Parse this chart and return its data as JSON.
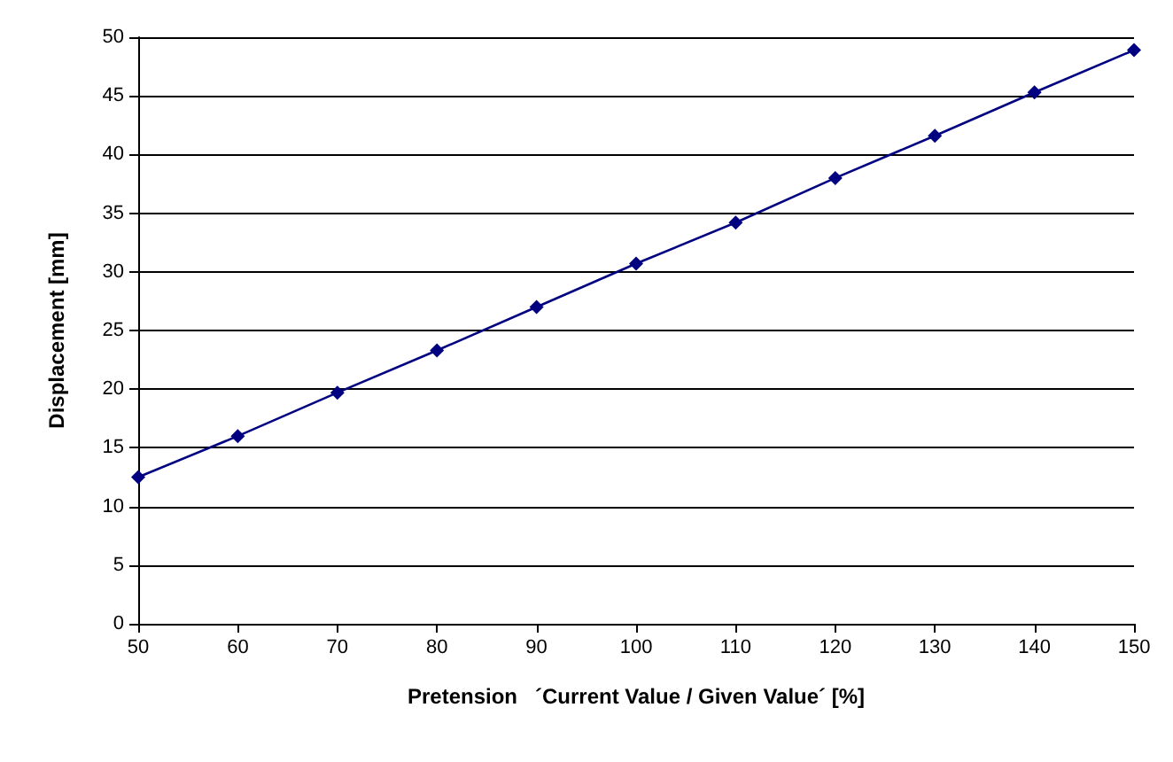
{
  "chart_data": {
    "type": "line",
    "xlabel": "Pretension   ´Current Value / Given Value´ [%]",
    "ylabel": "Displacement [mm]",
    "x": [
      50,
      60,
      70,
      80,
      90,
      100,
      110,
      120,
      130,
      140,
      150
    ],
    "series": [
      {
        "color": "#000080",
        "values": [
          12.5,
          16,
          19.7,
          23.3,
          27,
          30.7,
          34.2,
          38,
          41.6,
          45.3,
          48.9
        ]
      }
    ],
    "xlim": [
      50,
      150
    ],
    "xticks": [
      50,
      60,
      70,
      80,
      90,
      100,
      110,
      120,
      130,
      140,
      150
    ],
    "ylim": [
      0,
      50
    ],
    "yticks": [
      0,
      5,
      10,
      15,
      20,
      25,
      30,
      35,
      40,
      45,
      50
    ],
    "grid": "y",
    "marker": "diamond",
    "line_style": "solid"
  }
}
